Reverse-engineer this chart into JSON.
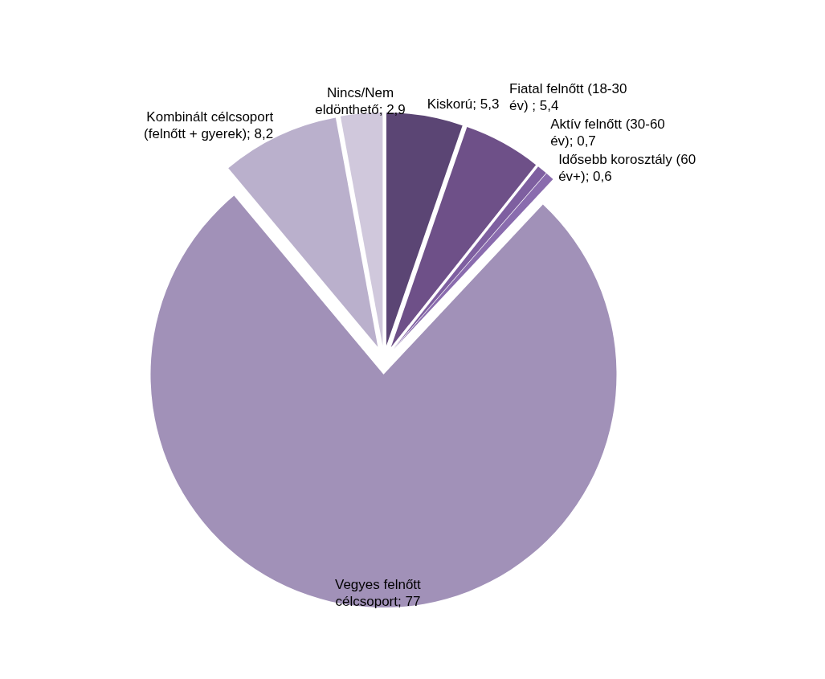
{
  "chart_data": {
    "type": "pie",
    "categories": [
      "Kiskorú",
      "Fiatal felnőtt (18-30 év) ",
      "Aktív felnőtt (30-60 év)",
      "Idősebb korosztály (60 év+)",
      "Vegyes felnőtt célcsoport",
      "Kombinált célcsoport (felnőtt + gyerek)",
      "Nincs/Nem eldönthető"
    ],
    "values": [
      5.3,
      5.4,
      0.7,
      0.6,
      77,
      8.2,
      2.9
    ],
    "value_labels": [
      "5,3",
      "5,4",
      "0,7",
      "0,6",
      "77",
      "8,2",
      "2,9"
    ],
    "colors": [
      "#5b4574",
      "#6e5088",
      "#7e5fa0",
      "#8a6cae",
      "#a191b8",
      "#bab0cc",
      "#d0c8dc"
    ]
  }
}
